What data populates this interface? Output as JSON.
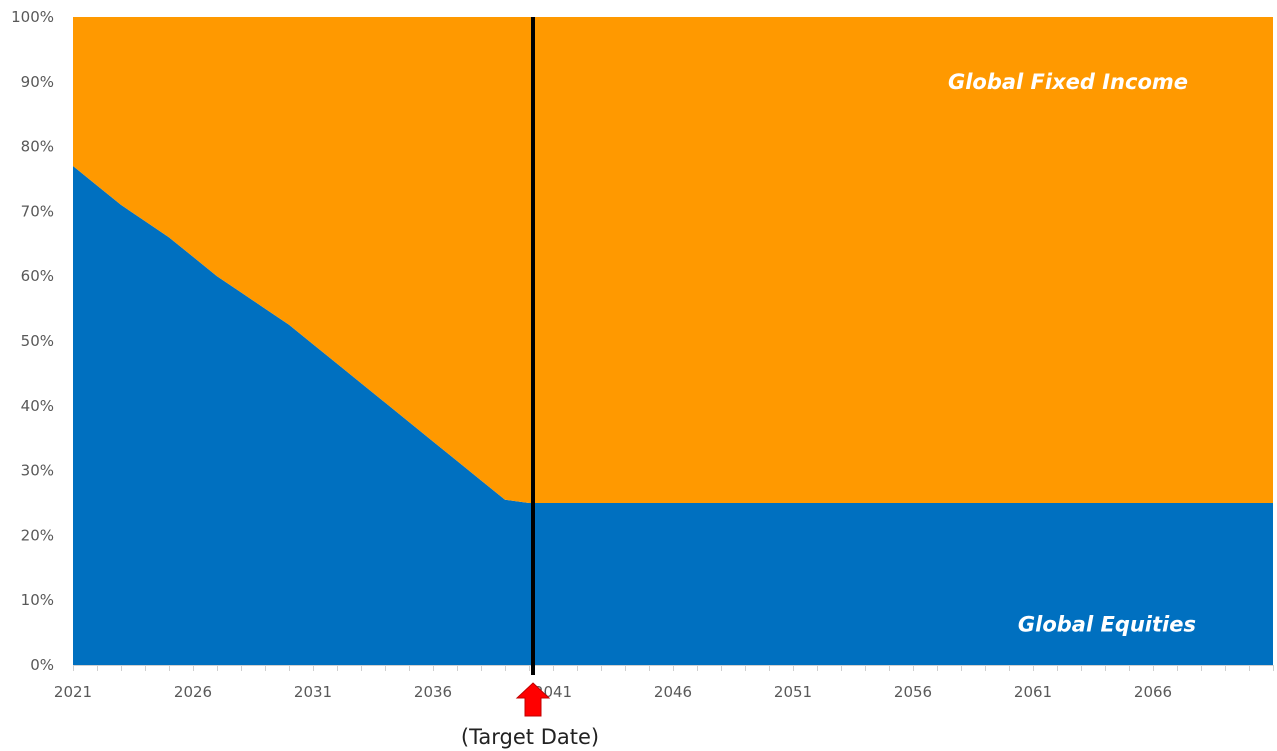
{
  "chart_data": {
    "type": "area",
    "stacked": true,
    "percent_axis": true,
    "title": "",
    "xlabel": "",
    "ylabel": "",
    "x": [
      2021,
      2022,
      2023,
      2024,
      2025,
      2026,
      2027,
      2028,
      2029,
      2030,
      2031,
      2032,
      2033,
      2034,
      2035,
      2036,
      2037,
      2038,
      2039,
      2040,
      2041,
      2042,
      2043,
      2044,
      2045,
      2046,
      2047,
      2048,
      2049,
      2050,
      2051,
      2052,
      2053,
      2054,
      2055,
      2056,
      2057,
      2058,
      2059,
      2060,
      2061,
      2062,
      2063,
      2064,
      2065,
      2066,
      2067,
      2068,
      2069,
      2070
    ],
    "series": [
      {
        "name": "Global Equities",
        "color": "#0070C0",
        "values": [
          77,
          74,
          71,
          68.5,
          66,
          63,
          60,
          57.5,
          55,
          52.5,
          49.5,
          46.5,
          43.5,
          40.5,
          37.5,
          34.5,
          31.5,
          28.5,
          25.5,
          25,
          25,
          25,
          25,
          25,
          25,
          25,
          25,
          25,
          25,
          25,
          25,
          25,
          25,
          25,
          25,
          25,
          25,
          25,
          25,
          25,
          25,
          25,
          25,
          25,
          25,
          25,
          25,
          25,
          25,
          25
        ]
      },
      {
        "name": "Global Fixed Income",
        "color": "#FF9900",
        "values": [
          23,
          26,
          29,
          31.5,
          34,
          37,
          40,
          42.5,
          45,
          47.5,
          50.5,
          53.5,
          56.5,
          59.5,
          62.5,
          65.5,
          68.5,
          71.5,
          74.5,
          75,
          75,
          75,
          75,
          75,
          75,
          75,
          75,
          75,
          75,
          75,
          75,
          75,
          75,
          75,
          75,
          75,
          75,
          75,
          75,
          75,
          75,
          75,
          75,
          75,
          75,
          75,
          75,
          75,
          75,
          75
        ]
      }
    ],
    "xlim": [
      2021,
      2070
    ],
    "ylim": [
      0,
      100
    ],
    "x_ticks": [
      2021,
      2026,
      2031,
      2036,
      2041,
      2046,
      2051,
      2056,
      2061,
      2066
    ],
    "x_tick_labels": [
      "2021",
      "2026",
      "2031",
      "2036",
      "2041",
      "2046",
      "2051",
      "2056",
      "2061",
      "2066"
    ],
    "y_ticks": [
      0,
      10,
      20,
      30,
      40,
      50,
      60,
      70,
      80,
      90,
      100
    ],
    "y_tick_labels": [
      "0%",
      "10%",
      "20%",
      "30%",
      "40%",
      "50%",
      "60%",
      "70%",
      "80%",
      "90%",
      "100%"
    ],
    "grid": false,
    "legend": "none",
    "annotations": {
      "target_date_x": 2040,
      "target_date_label": "(Target Date)",
      "target_line_color": "#000000",
      "arrow_color": "#FF0000"
    }
  }
}
